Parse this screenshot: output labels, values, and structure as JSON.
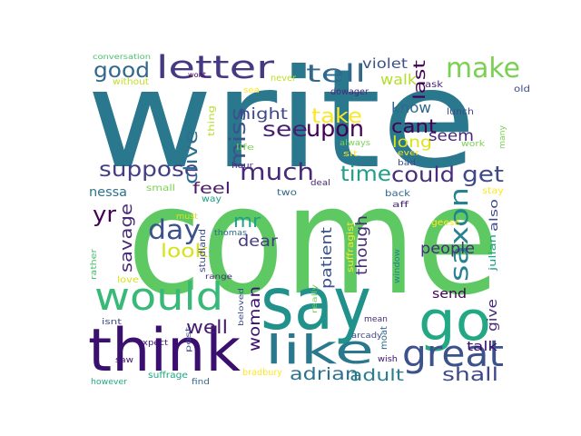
{
  "words": [
    {
      "text": "write",
      "color": "#2a788e"
    },
    {
      "text": "come",
      "color": "#5ec962"
    },
    {
      "text": "say",
      "color": "#21918c"
    },
    {
      "text": "think",
      "color": "#3b0f70"
    },
    {
      "text": "go",
      "color": "#22a884"
    },
    {
      "text": "would",
      "color": "#38b977"
    },
    {
      "text": "like",
      "color": "#2a788e"
    },
    {
      "text": "great",
      "color": "#3b528b"
    },
    {
      "text": "letter",
      "color": "#443983"
    },
    {
      "text": "make",
      "color": "#7ad151"
    },
    {
      "text": "tell",
      "color": "#31688e"
    },
    {
      "text": "good",
      "color": "#31688e"
    },
    {
      "text": "see",
      "color": "#481f70"
    },
    {
      "text": "upon",
      "color": "#440154"
    },
    {
      "text": "take",
      "color": "#fde725"
    },
    {
      "text": "miss",
      "color": "#3b528b"
    },
    {
      "text": "much",
      "color": "#482878"
    },
    {
      "text": "suppose",
      "color": "#433e85"
    },
    {
      "text": "time",
      "color": "#1f9e89"
    },
    {
      "text": "could",
      "color": "#472d7b"
    },
    {
      "text": "get",
      "color": "#3e4989"
    },
    {
      "text": "day",
      "color": "#3b528b"
    },
    {
      "text": "mr",
      "color": "#1fa187"
    },
    {
      "text": "yr",
      "color": "#440154"
    },
    {
      "text": "saxon",
      "color": "#26828e"
    },
    {
      "text": "adrian",
      "color": "#2c728e"
    },
    {
      "text": "shall",
      "color": "#3e4989"
    },
    {
      "text": "adult",
      "color": "#287d8e"
    },
    {
      "text": "well",
      "color": "#481f70"
    },
    {
      "text": "woman",
      "color": "#3b0f70"
    },
    {
      "text": "look",
      "color": "#d8e219"
    },
    {
      "text": "feel",
      "color": "#48186a"
    },
    {
      "text": "dear",
      "color": "#443983"
    },
    {
      "text": "savage",
      "color": "#482878"
    },
    {
      "text": "patient",
      "color": "#3b528b"
    },
    {
      "text": "though",
      "color": "#472c7a"
    },
    {
      "text": "clive",
      "color": "#2d708e"
    },
    {
      "text": "night",
      "color": "#3e4989"
    },
    {
      "text": "cant",
      "color": "#440154"
    },
    {
      "text": "long",
      "color": "#dce319"
    },
    {
      "text": "seem",
      "color": "#482878"
    },
    {
      "text": "know",
      "color": "#31688e"
    },
    {
      "text": "walk",
      "color": "#b5de2b"
    },
    {
      "text": "violet",
      "color": "#3b528b"
    },
    {
      "text": "last",
      "color": "#440154"
    },
    {
      "text": "people",
      "color": "#472d7b"
    },
    {
      "text": "talk",
      "color": "#3b0f70"
    },
    {
      "text": "send",
      "color": "#440154"
    },
    {
      "text": "give",
      "color": "#482878"
    },
    {
      "text": "nessa",
      "color": "#2c728e"
    },
    {
      "text": "conversation",
      "color": "#4ac16d"
    },
    {
      "text": "without",
      "color": "#c2df23"
    },
    {
      "text": "wont",
      "color": "#440154"
    },
    {
      "text": "never",
      "color": "#bddf26"
    },
    {
      "text": "sea",
      "color": "#fde725"
    },
    {
      "text": "thing",
      "color": "#b5de2b"
    },
    {
      "text": "hour",
      "color": "#472d7b"
    },
    {
      "text": "life",
      "color": "#7ad151"
    },
    {
      "text": "dowager",
      "color": "#482878"
    },
    {
      "text": "sit",
      "color": "#fde725"
    },
    {
      "text": "always",
      "color": "#7ad151"
    },
    {
      "text": "ask",
      "color": "#482878"
    },
    {
      "text": "old",
      "color": "#3e4989"
    },
    {
      "text": "lunch",
      "color": "#3e4989"
    },
    {
      "text": "ever",
      "color": "#fde725"
    },
    {
      "text": "bad",
      "color": "#3e4989"
    },
    {
      "text": "work",
      "color": "#7ad151"
    },
    {
      "text": "many",
      "color": "#7ad151"
    },
    {
      "text": "small",
      "color": "#7ad151"
    },
    {
      "text": "way",
      "color": "#1f9e89"
    },
    {
      "text": "two",
      "color": "#31688e"
    },
    {
      "text": "deal",
      "color": "#482878"
    },
    {
      "text": "back",
      "color": "#31688e"
    },
    {
      "text": "aff",
      "color": "#482878"
    },
    {
      "text": "stay",
      "color": "#fde725"
    },
    {
      "text": "must",
      "color": "#d8e219"
    },
    {
      "text": "geese",
      "color": "#fde725"
    },
    {
      "text": "also",
      "color": "#3e4989"
    },
    {
      "text": "julian",
      "color": "#1fa187"
    },
    {
      "text": "studland",
      "color": "#3e4989"
    },
    {
      "text": "thomas",
      "color": "#31688e"
    },
    {
      "text": "suffragist",
      "color": "#fde725"
    },
    {
      "text": "rather",
      "color": "#4ac16d"
    },
    {
      "text": "range",
      "color": "#472d7b"
    },
    {
      "text": "window",
      "color": "#26828e"
    },
    {
      "text": "love",
      "color": "#d8e219"
    },
    {
      "text": "beloved",
      "color": "#3e4989"
    },
    {
      "text": "really",
      "color": "#7ad151"
    },
    {
      "text": "mean",
      "color": "#472d7b"
    },
    {
      "text": "isnt",
      "color": "#3e4989"
    },
    {
      "text": "expect",
      "color": "#3b0f70"
    },
    {
      "text": "post",
      "color": "#3e4989"
    },
    {
      "text": "arcady",
      "color": "#3e4989"
    },
    {
      "text": "moat",
      "color": "#31688e"
    },
    {
      "text": "saw",
      "color": "#3b0f70"
    },
    {
      "text": "wish",
      "color": "#3b0f70"
    },
    {
      "text": "suffrage",
      "color": "#22a884"
    },
    {
      "text": "bradbury",
      "color": "#fde725"
    },
    {
      "text": "however",
      "color": "#22a884"
    },
    {
      "text": "find",
      "color": "#31688e"
    }
  ]
}
